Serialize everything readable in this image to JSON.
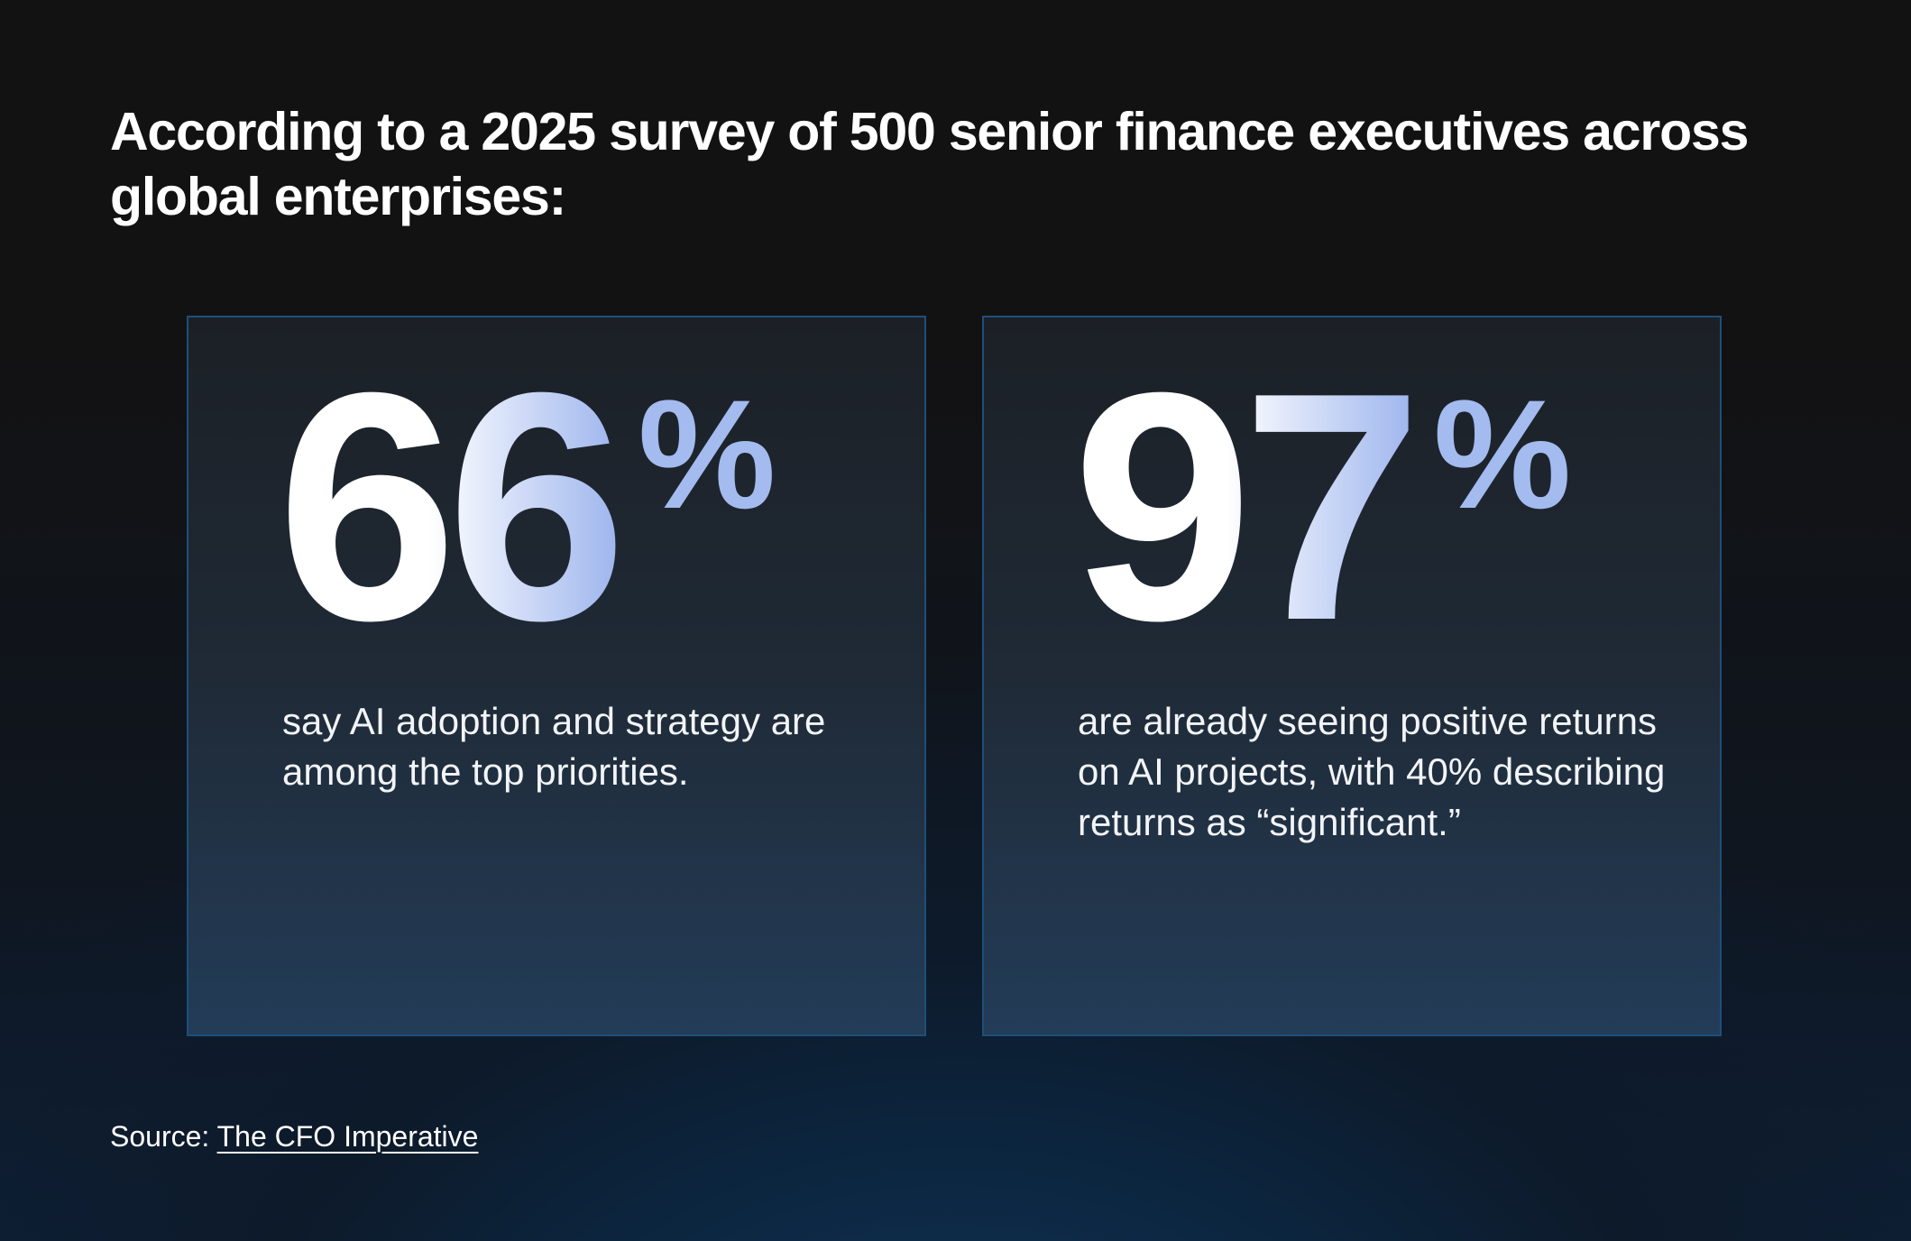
{
  "headline": "According to a 2025 survey of 500 senior finance executives across global enterprises:",
  "stats": [
    {
      "value": "66",
      "unit": "%",
      "description": "say AI adoption and strategy are among the top priorities."
    },
    {
      "value": "97",
      "unit": "%",
      "description": "are already seeing positive returns on AI projects, with 40% describing returns as “significant.”"
    }
  ],
  "source": {
    "label": "Source:",
    "link_text": "The CFO Imperative"
  },
  "colors": {
    "background": "#121213",
    "card_border": "#1d4f7a",
    "accent": "#a3bbef",
    "text": "#ffffff"
  }
}
